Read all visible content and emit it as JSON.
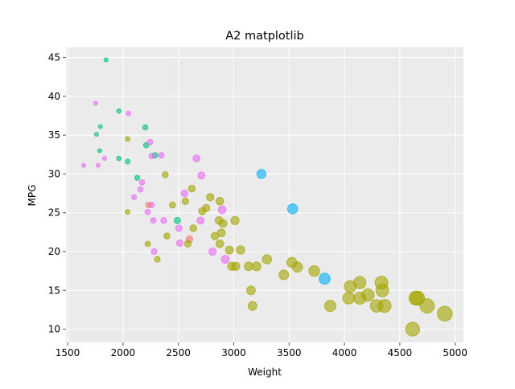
{
  "chart_data": {
    "type": "scatter",
    "title": "A2 matplotlib",
    "xlabel": "Weight",
    "ylabel": "MPG",
    "xlim": [
      1485,
      5075
    ],
    "ylim": [
      8.3,
      46.3
    ],
    "xticks": [
      1500,
      2000,
      2500,
      3000,
      3500,
      4000,
      4500,
      5000
    ],
    "yticks": [
      10,
      15,
      20,
      25,
      30,
      35,
      40,
      45
    ],
    "grid": true,
    "background": "#EBEBEB",
    "marker_alpha": 0.6,
    "series": [
      {
        "color": "#00BF7D",
        "points": [
          [
            1847,
            44.7
          ],
          [
            1963,
            38.1
          ],
          [
            2201,
            36.0
          ],
          [
            1796,
            36.1
          ],
          [
            1760,
            35.1
          ],
          [
            1789,
            33.0
          ],
          [
            1963,
            32.0
          ],
          [
            2042,
            31.6
          ],
          [
            2209,
            33.7
          ],
          [
            2288,
            32.4
          ],
          [
            2129,
            29.5
          ],
          [
            2491,
            24.0
          ]
        ]
      },
      {
        "color": "#E76BF3",
        "points": [
          [
            1753,
            39.1
          ],
          [
            2049,
            37.8
          ],
          [
            2245,
            34.1
          ],
          [
            2346,
            32.4
          ],
          [
            2259,
            32.3
          ],
          [
            2664,
            32.0
          ],
          [
            1833,
            32.0
          ],
          [
            1645,
            31.1
          ],
          [
            1775,
            31.1
          ],
          [
            2708,
            29.8
          ],
          [
            2172,
            28.9
          ],
          [
            2158,
            28.0
          ],
          [
            2100,
            27.0
          ],
          [
            2556,
            27.5
          ],
          [
            2259,
            26.0
          ],
          [
            2223,
            25.1
          ],
          [
            2274,
            24.0
          ],
          [
            2368,
            24.0
          ],
          [
            2895,
            25.4
          ],
          [
            2700,
            24.0
          ],
          [
            2505,
            23.0
          ],
          [
            2512,
            21.1
          ],
          [
            2281,
            20.0
          ],
          [
            2809,
            20.0
          ],
          [
            2924,
            19.0
          ]
        ]
      },
      {
        "color": "#F8766D",
        "points": [
          [
            2230,
            26.0
          ],
          [
            2600,
            21.6
          ]
        ]
      },
      {
        "color": "#A3A500",
        "points": [
          [
            2042,
            34.5
          ],
          [
            2382,
            29.9
          ],
          [
            2042,
            25.1
          ],
          [
            2621,
            28.1
          ],
          [
            2563,
            26.5
          ],
          [
            2447,
            26.0
          ],
          [
            2787,
            27.0
          ],
          [
            2874,
            26.5
          ],
          [
            2751,
            25.6
          ],
          [
            2715,
            25.2
          ],
          [
            2867,
            24.0
          ],
          [
            2903,
            23.6
          ],
          [
            3011,
            24.0
          ],
          [
            2635,
            23.0
          ],
          [
            2397,
            22.0
          ],
          [
            2888,
            22.4
          ],
          [
            2830,
            22.0
          ],
          [
            2874,
            21.0
          ],
          [
            2585,
            21.0
          ],
          [
            2223,
            21.0
          ],
          [
            2310,
            19.0
          ],
          [
            2961,
            20.2
          ],
          [
            3062,
            20.2
          ],
          [
            2982,
            18.1
          ],
          [
            3018,
            18.1
          ],
          [
            3134,
            18.1
          ],
          [
            3206,
            18.1
          ],
          [
            3300,
            19.0
          ],
          [
            3452,
            17.0
          ],
          [
            3525,
            18.6
          ],
          [
            3575,
            18.0
          ],
          [
            3727,
            17.5
          ],
          [
            3156,
            15.0
          ],
          [
            3170,
            13.0
          ],
          [
            3872,
            13.0
          ],
          [
            4052,
            15.5
          ],
          [
            4139,
            16.0
          ],
          [
            4038,
            14.0
          ],
          [
            4139,
            14.0
          ],
          [
            4212,
            14.4
          ],
          [
            4334,
            16.0
          ],
          [
            4342,
            15.0
          ],
          [
            4291,
            13.0
          ],
          [
            4363,
            13.0
          ],
          [
            4645,
            14.0
          ],
          [
            4660,
            14.0
          ],
          [
            4747,
            13.0
          ],
          [
            4616,
            10.0
          ],
          [
            4906,
            12.0
          ]
        ]
      },
      {
        "color": "#00B0F6",
        "points": [
          [
            3250,
            30.0
          ],
          [
            3532,
            25.5
          ],
          [
            3821,
            16.5
          ]
        ]
      }
    ]
  }
}
